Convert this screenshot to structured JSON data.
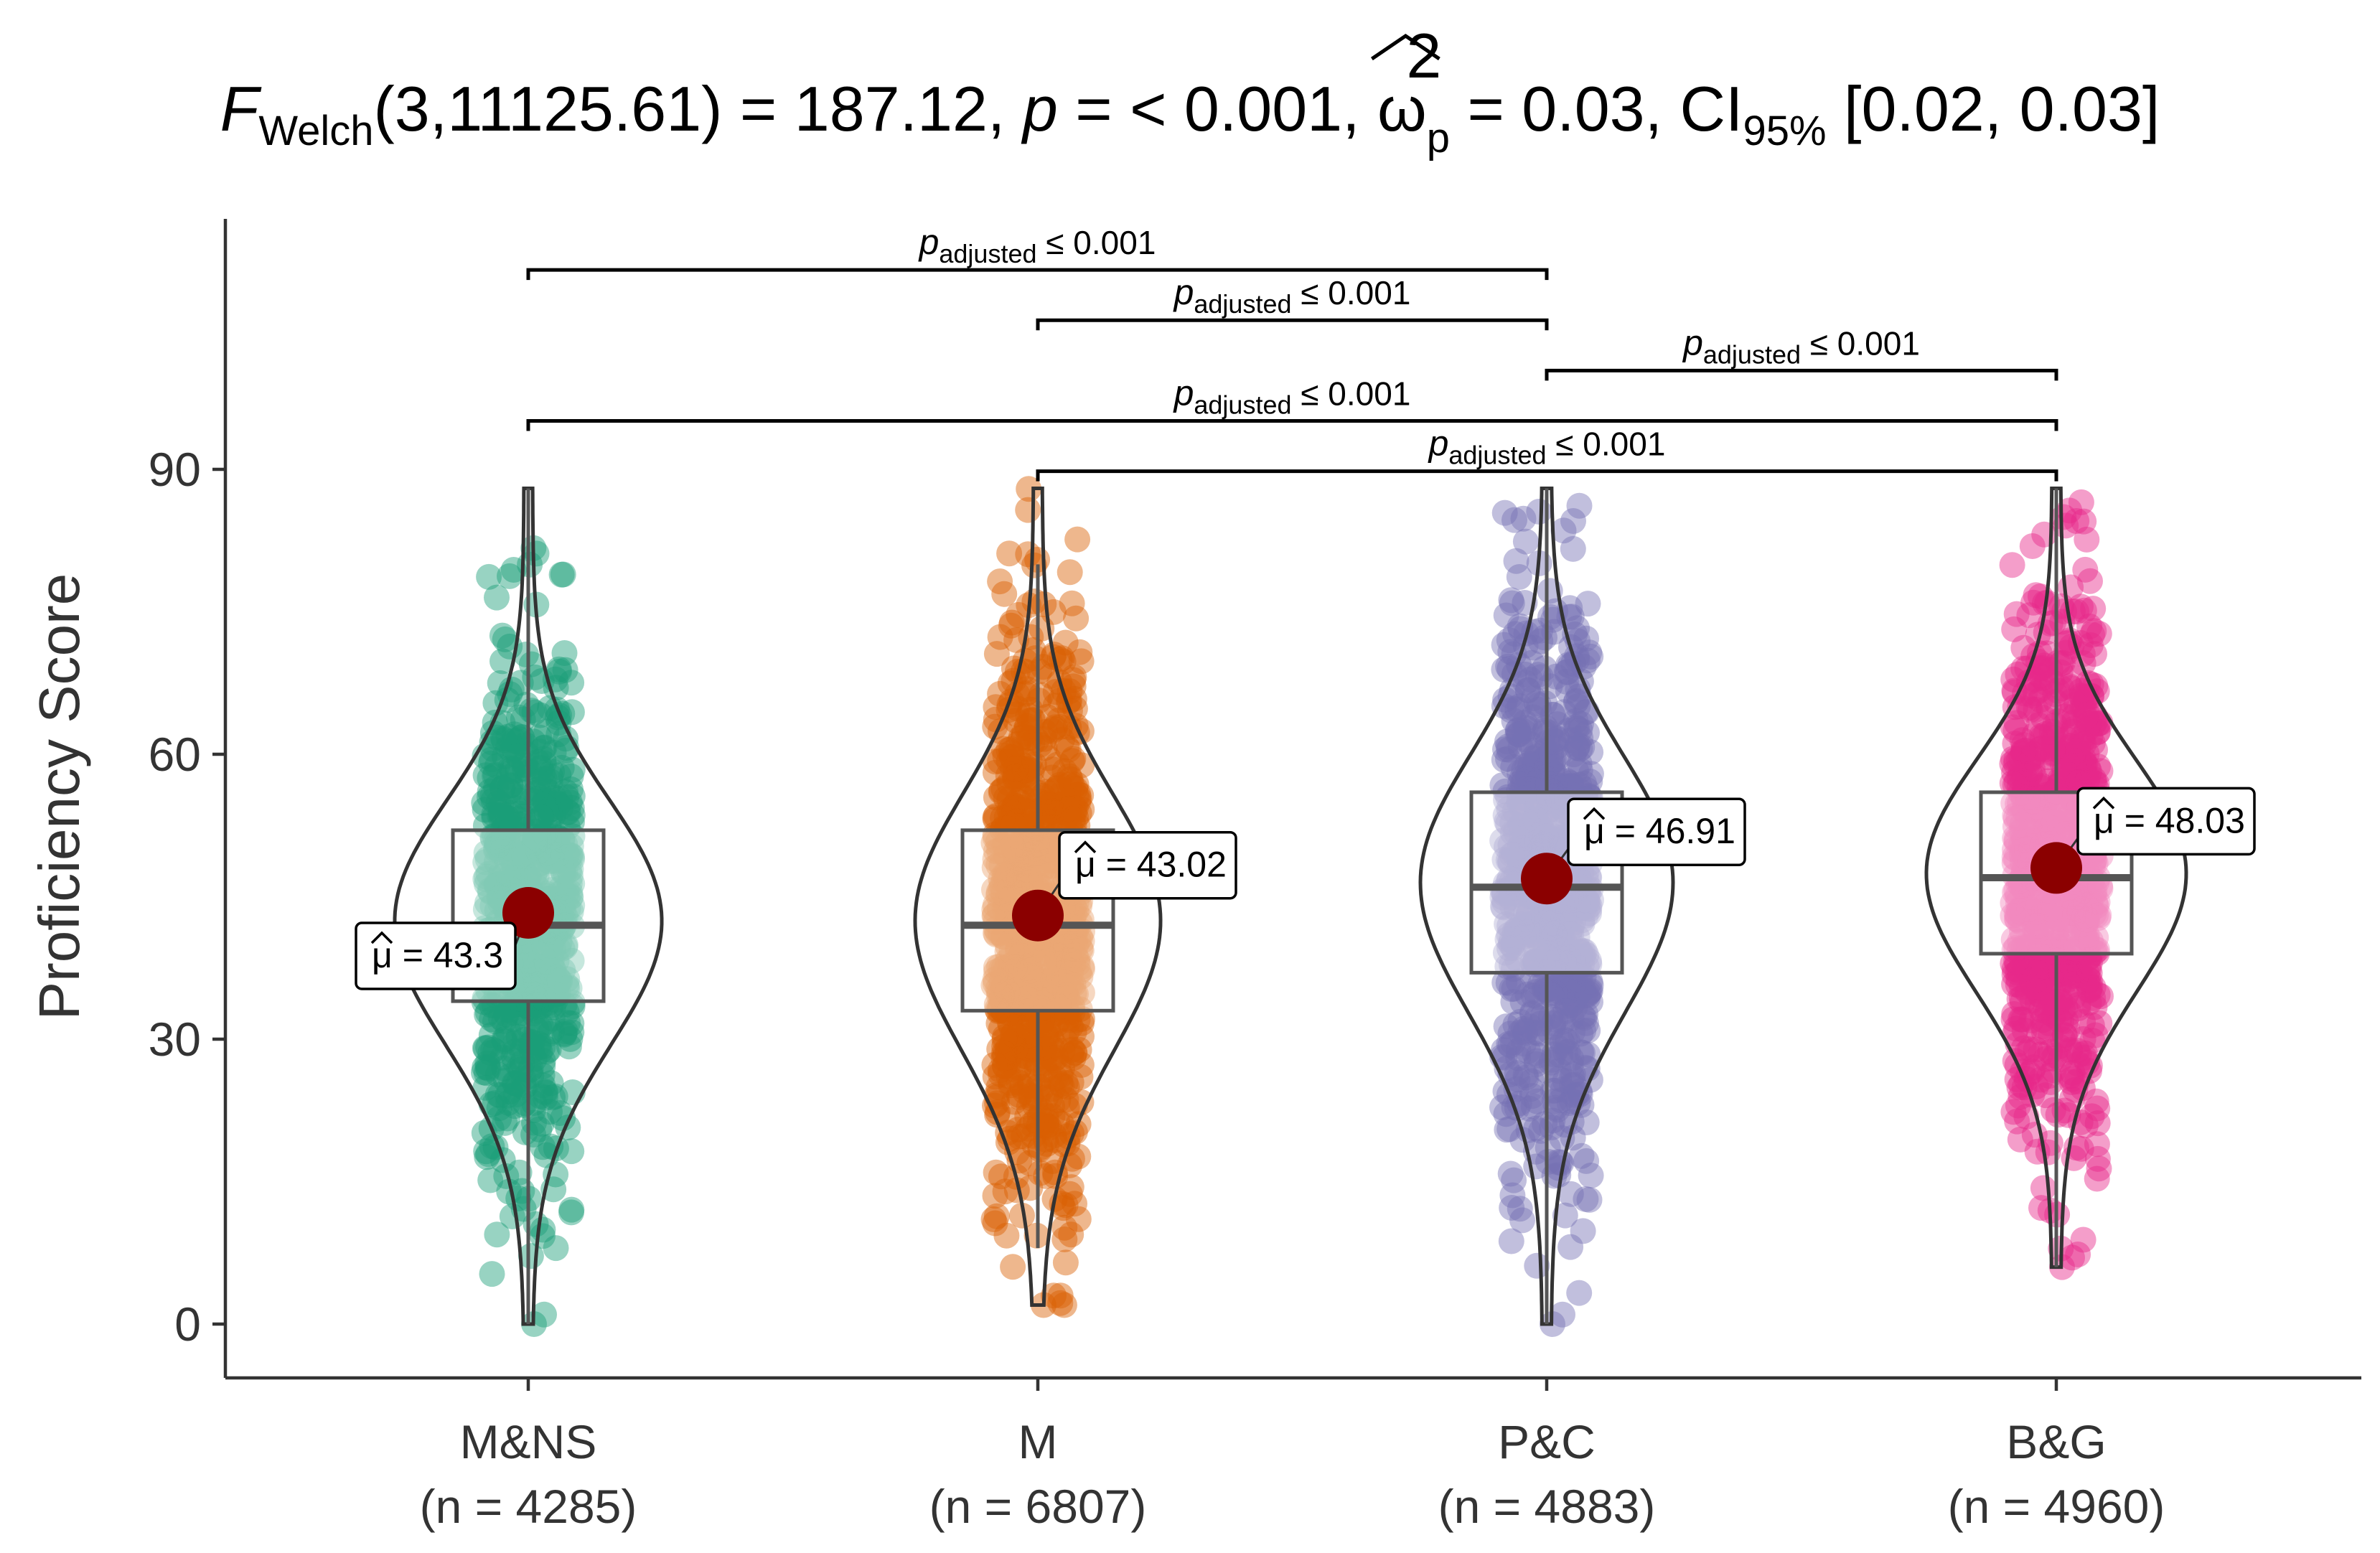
{
  "chart_data": {
    "type": "violin",
    "title": {
      "F": "F",
      "F_sub": "Welch",
      "df": "(3,11125.61) = 187.12, ",
      "p": "p",
      "p_rest": " = < 0.001, ",
      "omega": "ω",
      "omega_sup": "2",
      "omega_sub": "p",
      "omega_rest": " = 0.03, CI",
      "ci_sub": "95%",
      "ci_rest": " [0.02, 0.03]"
    },
    "ylabel": "Proficiency  Score",
    "xlabel": "",
    "ylim": [
      -5,
      115
    ],
    "yticks": [
      0,
      30,
      60,
      90
    ],
    "grid": false,
    "legend": "none",
    "categories": [
      "M&NS",
      "M",
      "P&C",
      "B&G"
    ],
    "category_labels": [
      "M&NS",
      "M",
      "P&C",
      "B&G"
    ],
    "n_labels": [
      "(n = 4285)",
      "(n = 6807)",
      "(n = 4883)",
      "(n = 4960)"
    ],
    "colors": [
      "#1b9e77",
      "#d95f02",
      "#7570b3",
      "#e7298a"
    ],
    "series": [
      {
        "name": "M&NS",
        "n": 4285,
        "mean": 43.3,
        "mean_label": "= 43.3",
        "q1": 34,
        "median": 42,
        "q3": 52,
        "whisker_low": 0,
        "whisker_high": 88,
        "min": 0,
        "max": 88
      },
      {
        "name": "M",
        "n": 6807,
        "mean": 43.02,
        "mean_label": "= 43.02",
        "q1": 33,
        "median": 42,
        "q3": 52,
        "whisker_low": 8,
        "whisker_high": 80,
        "min": 2,
        "max": 88
      },
      {
        "name": "P&C",
        "n": 4883,
        "mean": 46.91,
        "mean_label": "= 46.91",
        "q1": 37,
        "median": 46,
        "q3": 56,
        "whisker_low": 0,
        "whisker_high": 88,
        "min": 0,
        "max": 88
      },
      {
        "name": "B&G",
        "n": 4960,
        "mean": 48.03,
        "mean_label": "= 48.03",
        "q1": 39,
        "median": 47,
        "q3": 56,
        "whisker_low": 6,
        "whisker_high": 88,
        "min": 6,
        "max": 88
      }
    ],
    "mean_symbol": "μ",
    "comparisons": [
      {
        "from": 0,
        "to": 2,
        "y": 111,
        "label_p": "p",
        "label_sub": "adjusted",
        "label_rest": " ≤ 0.001"
      },
      {
        "from": 1,
        "to": 2,
        "y": 105.7,
        "label_p": "p",
        "label_sub": "adjusted",
        "label_rest": " ≤ 0.001"
      },
      {
        "from": 2,
        "to": 3,
        "y": 100.4,
        "label_p": "p",
        "label_sub": "adjusted",
        "label_rest": " ≤ 0.001"
      },
      {
        "from": 0,
        "to": 3,
        "y": 95.1,
        "label_p": "p",
        "label_sub": "adjusted",
        "label_rest": " ≤ 0.001"
      },
      {
        "from": 1,
        "to": 3,
        "y": 89.8,
        "label_p": "p",
        "label_sub": "adjusted",
        "label_rest": " ≤ 0.001"
      }
    ]
  }
}
